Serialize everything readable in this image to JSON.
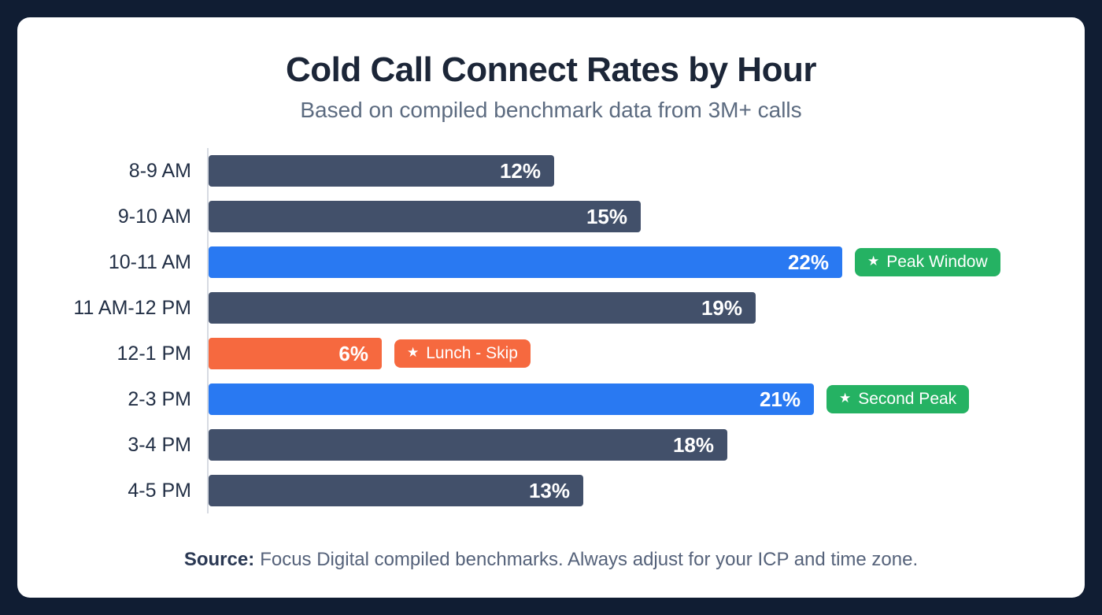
{
  "theme": {
    "bg": "#101d33",
    "card": "#ffffff",
    "title_color": "#1c2638",
    "subtitle_color": "#5c6b80",
    "axis_color": "#d7dbe2",
    "footer_color": "#55627a",
    "bar_dark": "#42506a",
    "bar_blue": "#2979f2",
    "bar_orange": "#f6693f",
    "badge_green": "#25b263",
    "badge_orange": "#f6693f"
  },
  "header": {
    "title": "Cold Call Connect Rates by Hour",
    "subtitle": "Based on compiled benchmark data from 3M+ calls"
  },
  "chart_data": {
    "type": "bar",
    "orientation": "horizontal",
    "title": "Cold Call Connect Rates by Hour",
    "subtitle": "Based on compiled benchmark data from 3M+ calls",
    "categories": [
      "8-9 AM",
      "9-10 AM",
      "10-11 AM",
      "11 AM-12 PM",
      "12-1 PM",
      "2-3 PM",
      "3-4 PM",
      "4-5 PM"
    ],
    "values": [
      12,
      15,
      22,
      19,
      6,
      21,
      18,
      13
    ],
    "value_labels": [
      "12%",
      "15%",
      "22%",
      "19%",
      "6%",
      "21%",
      "18%",
      "13%"
    ],
    "bar_colors": [
      "dark",
      "dark",
      "blue",
      "dark",
      "orange",
      "blue",
      "dark",
      "dark"
    ],
    "annotations": [
      {
        "row": 2,
        "label": "Peak Window",
        "color": "green",
        "icon": "star"
      },
      {
        "row": 4,
        "label": "Lunch - Skip",
        "color": "orange",
        "icon": "star"
      },
      {
        "row": 5,
        "label": "Second Peak",
        "color": "green",
        "icon": "star"
      }
    ],
    "xlim": [
      0,
      24
    ],
    "grid": false,
    "legend": false
  },
  "footer": {
    "source_label": "Source:",
    "source_text": "Focus Digital compiled benchmarks. Always adjust for your ICP and time zone."
  }
}
